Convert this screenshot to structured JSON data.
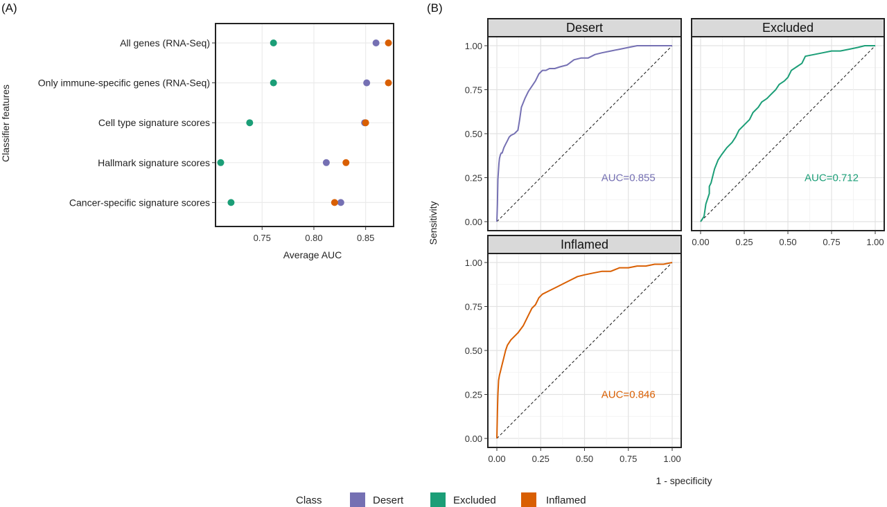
{
  "colors": {
    "Desert": "#7570b3",
    "Excluded": "#1b9e77",
    "Inflamed": "#d95f02"
  },
  "legend": {
    "title": "Class",
    "items": [
      "Desert",
      "Excluded",
      "Inflamed"
    ]
  },
  "chart_data": [
    {
      "panel": "(A)",
      "type": "scatter",
      "xlabel": "Average AUC",
      "ylabel": "Classifier features",
      "xlim": [
        0.705,
        0.877
      ],
      "xticks": [
        "0.75",
        "0.80",
        "0.85"
      ],
      "xtick_values": [
        0.75,
        0.8,
        0.85
      ],
      "grid": true,
      "categories": [
        "All genes (RNA-Seq)",
        "Only immune-specific genes (RNA-Seq)",
        "Cell type signature scores",
        "Hallmark signature scores",
        "Cancer-specific signature scores"
      ],
      "series": [
        {
          "name": "Desert",
          "values": [
            0.86,
            0.851,
            0.849,
            0.812,
            0.826
          ]
        },
        {
          "name": "Excluded",
          "values": [
            0.761,
            0.761,
            0.738,
            0.71,
            0.72
          ]
        },
        {
          "name": "Inflamed",
          "values": [
            0.872,
            0.872,
            0.85,
            0.831,
            0.82
          ]
        }
      ]
    },
    {
      "panel": "(B)",
      "type": "line",
      "xlabel": "1 - specificity",
      "ylabel": "Sensitivity",
      "xlim": [
        0,
        1
      ],
      "ylim": [
        0,
        1
      ],
      "ticks": [
        "0.00",
        "0.25",
        "0.50",
        "0.75",
        "1.00"
      ],
      "tick_values": [
        0,
        0.25,
        0.5,
        0.75,
        1
      ],
      "grid": true,
      "facets": [
        {
          "name": "Desert",
          "auc_label": "AUC=0.855",
          "x": [
            0,
            0.003,
            0.006,
            0.01,
            0.012,
            0.015,
            0.02,
            0.025,
            0.03,
            0.04,
            0.05,
            0.06,
            0.07,
            0.08,
            0.1,
            0.12,
            0.13,
            0.14,
            0.16,
            0.18,
            0.2,
            0.22,
            0.24,
            0.26,
            0.28,
            0.3,
            0.33,
            0.36,
            0.4,
            0.44,
            0.48,
            0.52,
            0.56,
            0.6,
            0.65,
            0.7,
            0.75,
            0.8,
            0.9,
            1
          ],
          "y": [
            0,
            0.1,
            0.24,
            0.3,
            0.33,
            0.36,
            0.38,
            0.39,
            0.39,
            0.42,
            0.44,
            0.46,
            0.48,
            0.49,
            0.5,
            0.52,
            0.58,
            0.65,
            0.7,
            0.74,
            0.77,
            0.8,
            0.84,
            0.86,
            0.86,
            0.87,
            0.87,
            0.88,
            0.89,
            0.92,
            0.93,
            0.93,
            0.95,
            0.96,
            0.97,
            0.98,
            0.99,
            1.0,
            1.0,
            1.0
          ]
        },
        {
          "name": "Excluded",
          "auc_label": "AUC=0.712",
          "x": [
            0,
            0.02,
            0.03,
            0.05,
            0.05,
            0.06,
            0.07,
            0.08,
            0.1,
            0.12,
            0.15,
            0.18,
            0.2,
            0.22,
            0.25,
            0.28,
            0.3,
            0.33,
            0.35,
            0.38,
            0.4,
            0.43,
            0.45,
            0.48,
            0.5,
            0.52,
            0.55,
            0.58,
            0.6,
            0.65,
            0.7,
            0.75,
            0.8,
            0.85,
            0.9,
            0.94,
            1
          ],
          "y": [
            0,
            0.03,
            0.1,
            0.16,
            0.2,
            0.22,
            0.26,
            0.3,
            0.35,
            0.38,
            0.42,
            0.45,
            0.48,
            0.52,
            0.55,
            0.58,
            0.62,
            0.65,
            0.68,
            0.7,
            0.72,
            0.75,
            0.78,
            0.8,
            0.82,
            0.86,
            0.88,
            0.9,
            0.94,
            0.95,
            0.96,
            0.97,
            0.97,
            0.98,
            0.99,
            1.0,
            1.0
          ]
        },
        {
          "name": "Inflamed",
          "auc_label": "AUC=0.846",
          "x": [
            0,
            0.003,
            0.006,
            0.01,
            0.015,
            0.02,
            0.03,
            0.04,
            0.05,
            0.06,
            0.08,
            0.1,
            0.12,
            0.15,
            0.18,
            0.2,
            0.22,
            0.24,
            0.26,
            0.3,
            0.34,
            0.38,
            0.42,
            0.46,
            0.5,
            0.55,
            0.6,
            0.65,
            0.7,
            0.75,
            0.8,
            0.85,
            0.9,
            0.95,
            1
          ],
          "y": [
            0,
            0.15,
            0.25,
            0.33,
            0.36,
            0.38,
            0.42,
            0.46,
            0.5,
            0.53,
            0.56,
            0.58,
            0.6,
            0.64,
            0.7,
            0.74,
            0.76,
            0.8,
            0.82,
            0.84,
            0.86,
            0.88,
            0.9,
            0.92,
            0.93,
            0.94,
            0.95,
            0.95,
            0.97,
            0.97,
            0.98,
            0.98,
            0.99,
            0.99,
            1.0
          ]
        }
      ]
    }
  ]
}
